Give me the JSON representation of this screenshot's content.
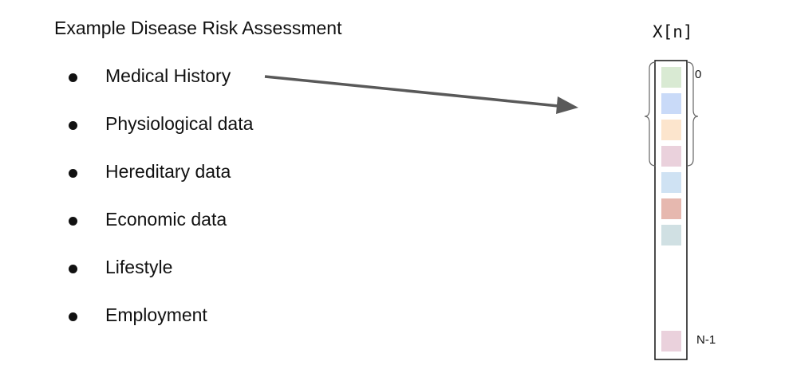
{
  "title": "Example Disease Risk Assessment",
  "features": [
    "Medical History",
    "Physiological data",
    "Hereditary data",
    "Economic data",
    "Lifestyle",
    "Employment"
  ],
  "array": {
    "label": "X[n]",
    "index_start": "0",
    "index_end": "N-1",
    "cell_colors": [
      "#d9ead3",
      "#c9daf8",
      "#fce5cd",
      "#ead1dc",
      "#cfe2f3",
      "#e6b8af",
      "#d0e0e3",
      "#ead1dc"
    ],
    "border_color": "#111111",
    "arrow_color": "#595959",
    "brace_color": "#666666"
  }
}
